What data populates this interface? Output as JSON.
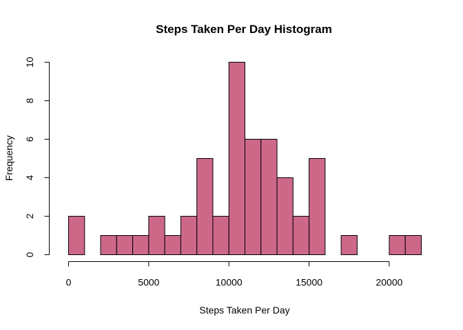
{
  "chart_data": {
    "type": "bar",
    "title": "Steps Taken Per Day Histogram",
    "xlabel": "Steps Taken Per Day",
    "ylabel": "Frequency",
    "bar_color": "#cd6889",
    "bin_width": 1000,
    "bin_starts": [
      0,
      1000,
      2000,
      3000,
      4000,
      5000,
      6000,
      7000,
      8000,
      9000,
      10000,
      11000,
      12000,
      13000,
      14000,
      15000,
      16000,
      17000,
      18000,
      19000,
      20000,
      21000
    ],
    "values": [
      2,
      0,
      1,
      1,
      1,
      2,
      1,
      2,
      5,
      2,
      10,
      6,
      6,
      4,
      2,
      5,
      0,
      1,
      0,
      0,
      1,
      1
    ],
    "xlim": [
      0,
      22000
    ],
    "ylim": [
      0,
      10
    ],
    "x_ticks": [
      0,
      5000,
      10000,
      15000,
      20000
    ],
    "x_tick_labels": [
      "0",
      "5000",
      "10000",
      "15000",
      "20000"
    ],
    "y_ticks": [
      0,
      2,
      4,
      6,
      8,
      10
    ],
    "y_tick_labels": [
      "0",
      "2",
      "4",
      "6",
      "8",
      "10"
    ],
    "grid": false,
    "legend": "none"
  }
}
